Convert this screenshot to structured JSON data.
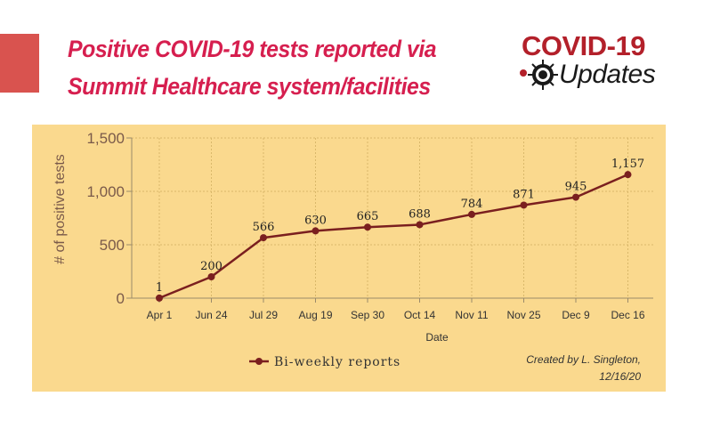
{
  "headline": {
    "line1": "Positive COVID-19 tests reported via",
    "line2": "Summit Healthcare system/facilities"
  },
  "logo": {
    "top_text": "COVID-19",
    "bottom_text": "Updates",
    "icon": "virus-icon"
  },
  "colors": {
    "headline": "#d61f4f",
    "accent_block": "#d9534f",
    "panel": "#fad98e",
    "series": "#7a1f1f",
    "logo_red": "#b3202a"
  },
  "credit": {
    "line1": "Created by L. Singleton,",
    "line2": "12/16/20"
  },
  "chart_data": {
    "type": "line",
    "title": "",
    "xlabel": "Date",
    "ylabel": "# of positive tests",
    "categories": [
      "Apr 1",
      "Jun 24",
      "Jul 29",
      "Aug 19",
      "Sep 30",
      "Oct 14",
      "Nov 11",
      "Nov 25",
      "Dec 9",
      "Dec 16"
    ],
    "series": [
      {
        "name": "Bi-weekly reports",
        "values": [
          1,
          200,
          566,
          630,
          665,
          688,
          784,
          871,
          945,
          1157
        ],
        "labels": [
          "1",
          "200",
          "566",
          "630",
          "665",
          "688",
          "784",
          "871",
          "945",
          "1,157"
        ]
      }
    ],
    "ylim": [
      0,
      1500
    ],
    "yticks": [
      0,
      500,
      1000,
      1500
    ],
    "ytick_labels": [
      "0",
      "500",
      "1,000",
      "1,500"
    ],
    "grid": true,
    "legend": "bottom-left"
  }
}
